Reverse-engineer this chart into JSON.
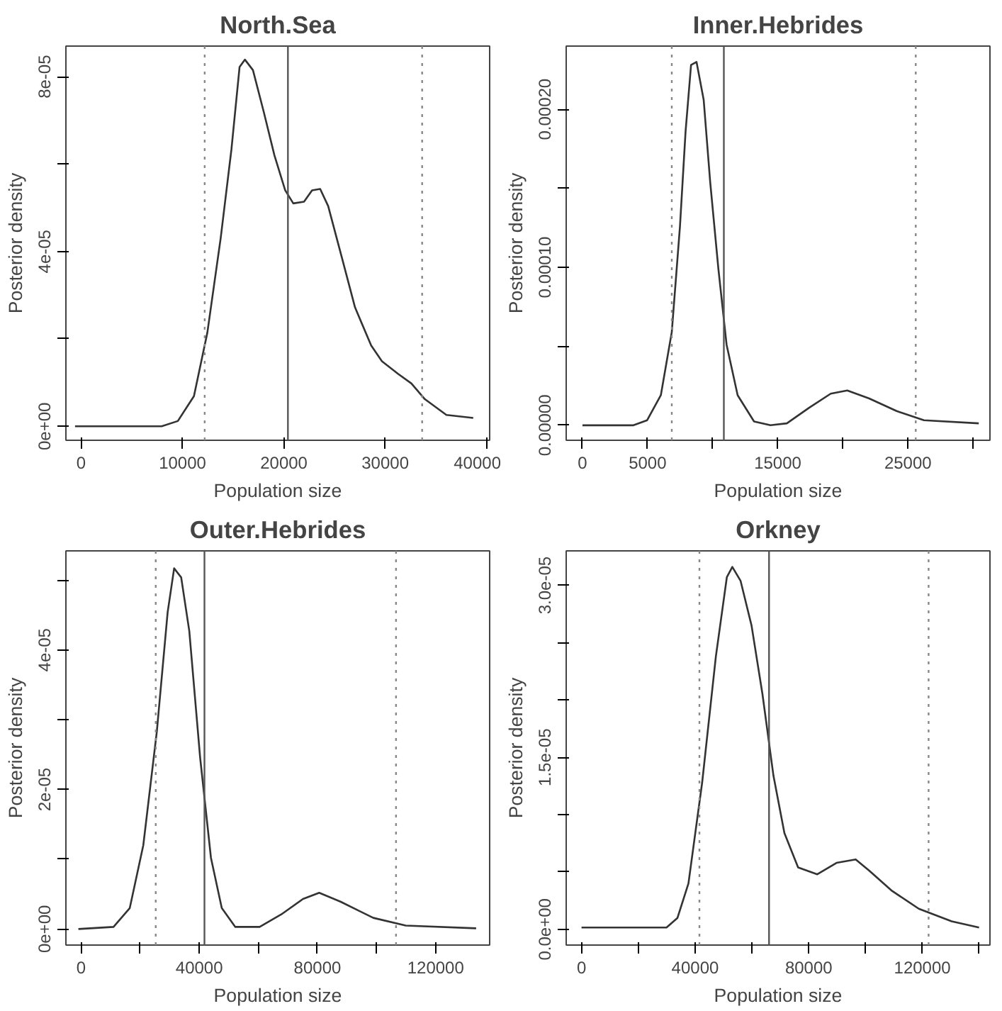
{
  "chart_data": [
    {
      "type": "line",
      "title": "North.Sea",
      "xlabel": "Population size",
      "ylabel": "Posterior density",
      "x": [
        -600,
        7950,
        9540,
        11130,
        12450,
        13770,
        14830,
        15630,
        16160,
        16950,
        18010,
        19070,
        20130,
        20930,
        21990,
        22780,
        23580,
        24370,
        25700,
        27020,
        28610,
        29670,
        31260,
        32580,
        33910,
        36030,
        38680
      ],
      "series": [
        {
          "color": "#333333",
          "values": [
            0,
            0,
            1.2e-06,
            6.9e-06,
            2.14e-05,
            4.31e-05,
            6.34e-05,
            8.22e-05,
            8.39e-05,
            8.15e-05,
            7.2e-05,
            6.2e-05,
            5.4e-05,
            5.1e-05,
            5.14e-05,
            5.4e-05,
            5.43e-05,
            5.04e-05,
            3.88e-05,
            2.72e-05,
            1.85e-05,
            1.49e-05,
            1.2e-05,
            9.8e-06,
            6.2e-06,
            2.6e-06,
            1.9e-06
          ]
        }
      ],
      "xlim": [
        -1500,
        40300
      ],
      "ylim": [
        -3.2e-06,
        8.7e-05
      ],
      "xticks": [
        0,
        10000,
        20000,
        30000,
        40000
      ],
      "yticks": [
        {
          "value": 0,
          "label": "0e+00"
        },
        {
          "value": 2e-05,
          "label": null
        },
        {
          "value": 4e-05,
          "label": "4e-05"
        },
        {
          "value": 6e-05,
          "label": null
        },
        {
          "value": 8e-05,
          "label": "8e-05"
        }
      ],
      "ref_lines": [
        {
          "axis": "x",
          "value": 12190,
          "label": null,
          "color": "#888888",
          "line_style": "dotted"
        },
        {
          "axis": "x",
          "value": 20400,
          "label": null,
          "color": "#555555",
          "line_style": "solid"
        },
        {
          "axis": "x",
          "value": 33640,
          "label": null,
          "color": "#888888",
          "line_style": "dotted"
        }
      ],
      "grid": false,
      "line_style": "solid"
    },
    {
      "type": "line",
      "title": "Inner.Hebrides",
      "xlabel": "Population size",
      "ylabel": "Posterior density",
      "x": [
        0,
        3920,
        4970,
        6020,
        6860,
        7490,
        7920,
        8340,
        8760,
        9310,
        9810,
        10440,
        11070,
        11920,
        13180,
        14440,
        15700,
        17390,
        19070,
        20340,
        22020,
        24130,
        26230,
        30440
      ],
      "series": [
        {
          "color": "#333333",
          "values": [
            0,
            0,
            3.2e-06,
            1.9e-05,
            5.9e-05,
            0.000126,
            0.000186,
            0.000228,
            0.00023,
            0.000206,
            0.000154,
            9.9e-05,
            5.1e-05,
            1.9e-05,
            2.4e-06,
            0,
            1.2e-06,
            1.1e-05,
            2e-05,
            2.2e-05,
            1.7e-05,
            9e-06,
            3.2e-06,
            1.2e-06
          ]
        }
      ],
      "xlim": [
        -1250,
        31300
      ],
      "ylim": [
        -9.5e-06,
        0.00024
      ],
      "xticks": [
        0,
        5000,
        {
          "value": 10000,
          "label": null
        },
        15000,
        {
          "value": 20000,
          "label": null
        },
        25000,
        {
          "value": 30000,
          "label": null
        }
      ],
      "yticks": [
        {
          "value": 0,
          "label": "0.00000"
        },
        {
          "value": 5e-05,
          "label": null
        },
        {
          "value": 0.0001,
          "label": "0.00010"
        },
        {
          "value": 0.00015,
          "label": null
        },
        {
          "value": 0.0002,
          "label": "0.00020"
        }
      ],
      "ref_lines": [
        {
          "axis": "x",
          "value": 6860,
          "label": null,
          "color": "#888888",
          "line_style": "dotted"
        },
        {
          "axis": "x",
          "value": 10860,
          "label": null,
          "color": "#555555",
          "line_style": "solid"
        },
        {
          "axis": "x",
          "value": 25600,
          "label": null,
          "color": "#888888",
          "line_style": "dotted"
        }
      ],
      "grid": false,
      "line_style": "solid"
    },
    {
      "type": "line",
      "title": "Outer.Hebrides",
      "xlabel": "Population size",
      "ylabel": "Posterior density",
      "x": [
        -900,
        10990,
        16480,
        21060,
        25640,
        29300,
        31500,
        33880,
        36630,
        40290,
        43960,
        47620,
        52200,
        60440,
        67770,
        75090,
        80590,
        87910,
        98900,
        109890,
        133700
      ],
      "series": [
        {
          "color": "#333333",
          "values": [
            0,
            3e-07,
            3e-06,
            1.2e-05,
            2.83e-05,
            4.54e-05,
            5.17e-05,
            5.04e-05,
            4.27e-05,
            2.46e-05,
            1.02e-05,
            3e-06,
            3e-07,
            3e-07,
            2.1e-06,
            4.3e-06,
            5.2e-06,
            3.9e-06,
            1.6e-06,
            5e-07,
            1e-07
          ]
        }
      ],
      "xlim": [
        -5130,
        138280
      ],
      "ylim": [
        -2.3e-06,
        5.42e-05
      ],
      "xticks": [
        0,
        {
          "value": 20000,
          "label": null
        },
        40000,
        {
          "value": 60000,
          "label": null
        },
        80000,
        {
          "value": 100000,
          "label": null
        },
        120000
      ],
      "yticks": [
        {
          "value": 0,
          "label": "0e+00"
        },
        {
          "value": 1e-05,
          "label": null
        },
        {
          "value": 2e-05,
          "label": "2e-05"
        },
        {
          "value": 3e-05,
          "label": null
        },
        {
          "value": 4e-05,
          "label": "4e-05"
        },
        {
          "value": 5e-05,
          "label": null
        }
      ],
      "ref_lines": [
        {
          "axis": "x",
          "value": 25270,
          "label": null,
          "color": "#888888",
          "line_style": "dotted"
        },
        {
          "axis": "x",
          "value": 41760,
          "label": null,
          "color": "#555555",
          "line_style": "solid"
        },
        {
          "axis": "x",
          "value": 106590,
          "label": null,
          "color": "#888888",
          "line_style": "dotted"
        }
      ],
      "grid": false,
      "line_style": "solid"
    },
    {
      "type": "line",
      "title": "Orkney",
      "xlabel": "Population size",
      "ylabel": "Posterior density",
      "x": [
        0,
        29920,
        33780,
        37640,
        42470,
        47300,
        51160,
        53090,
        55980,
        59850,
        63710,
        67570,
        71430,
        76250,
        83010,
        89770,
        96530,
        101350,
        109070,
        118730,
        130310,
        139960
      ],
      "series": [
        {
          "color": "#333333",
          "values": [
            1.6e-07,
            1.6e-07,
            1e-06,
            4e-06,
            1.28e-05,
            2.38e-05,
            3.07e-05,
            3.16e-05,
            3.04e-05,
            2.65e-05,
            2.05e-05,
            1.34e-05,
            8.4e-06,
            5.4e-06,
            4.8e-06,
            5.8e-06,
            6.1e-06,
            5.1e-06,
            3.4e-06,
            1.8e-06,
            7e-07,
            1.6e-07
          ]
        }
      ],
      "xlim": [
        -5400,
        143800
      ],
      "ylim": [
        -1.37e-06,
        3.3e-05
      ],
      "xticks": [
        0,
        {
          "value": 20000,
          "label": null
        },
        40000,
        {
          "value": 60000,
          "label": null
        },
        80000,
        {
          "value": 100000,
          "label": null
        },
        120000,
        {
          "value": 140000,
          "label": null
        }
      ],
      "yticks": [
        {
          "value": 0,
          "label": "0.0e+00"
        },
        {
          "value": 5e-06,
          "label": null
        },
        {
          "value": 1e-05,
          "label": null
        },
        {
          "value": 1.5e-05,
          "label": "1.5e-05"
        },
        {
          "value": 2e-05,
          "label": null
        },
        {
          "value": 2.5e-05,
          "label": null
        },
        {
          "value": 3e-05,
          "label": "3.0e-05"
        }
      ],
      "ref_lines": [
        {
          "axis": "x",
          "value": 41510,
          "label": null,
          "color": "#888888",
          "line_style": "dotted"
        },
        {
          "axis": "x",
          "value": 66020,
          "label": null,
          "color": "#555555",
          "line_style": "solid"
        },
        {
          "axis": "x",
          "value": 122200,
          "label": null,
          "color": "#888888",
          "line_style": "dotted"
        }
      ],
      "grid": false,
      "line_style": "solid"
    }
  ]
}
